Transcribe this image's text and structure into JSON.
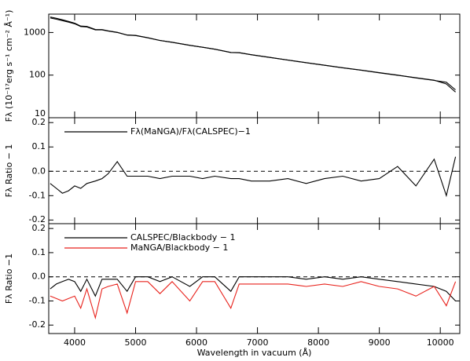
{
  "chart_data": [
    {
      "type": "line",
      "ylabel": "Fλ (10⁻¹⁷erg s⁻¹ cm⁻² Å⁻¹)",
      "log_y": true,
      "x": [
        3600,
        3700,
        3800,
        3900,
        4000,
        4100,
        4200,
        4340,
        4450,
        4550,
        4700,
        4861,
        5000,
        5200,
        5400,
        5600,
        5890,
        6100,
        6300,
        6563,
        6700,
        6900,
        7200,
        7500,
        7800,
        8100,
        8400,
        8700,
        9000,
        9300,
        9600,
        9900,
        10100,
        10250
      ],
      "series": [
        {
          "color": "#000000",
          "values": [
            2200,
            2050,
            1900,
            1750,
            1600,
            1380,
            1350,
            1150,
            1150,
            1080,
            1000,
            870,
            850,
            750,
            650,
            590,
            500,
            450,
            405,
            340,
            335,
            300,
            260,
            225,
            195,
            170,
            148,
            130,
            113,
            99,
            86,
            75,
            68,
            45
          ]
        },
        {
          "color": "#000000",
          "values": [
            2320,
            2160,
            1990,
            1820,
            1660,
            1420,
            1390,
            1180,
            1170,
            1095,
            1010,
            875,
            855,
            752,
            652,
            591,
            501,
            451,
            406,
            341,
            336,
            301,
            261,
            226,
            196,
            171,
            149,
            131,
            114,
            100,
            87,
            76,
            62,
            40
          ]
        }
      ],
      "xlim": [
        3575,
        10320
      ],
      "ylim": [
        10,
        2700
      ],
      "yticks": [
        10,
        100,
        1000
      ]
    },
    {
      "type": "line",
      "ylabel": "Fλ Ratio − 1",
      "reference_line": 0,
      "x": [
        3600,
        3700,
        3800,
        3900,
        4000,
        4100,
        4200,
        4340,
        4450,
        4550,
        4700,
        4861,
        5000,
        5200,
        5400,
        5600,
        5890,
        6100,
        6300,
        6563,
        6700,
        6900,
        7200,
        7500,
        7800,
        8100,
        8400,
        8700,
        9000,
        9300,
        9600,
        9900,
        10100,
        10250
      ],
      "series": [
        {
          "name": "Fλ(MaNGA)/Fλ(CALSPEC)−1",
          "color": "#000000",
          "values": [
            -0.05,
            -0.07,
            -0.09,
            -0.08,
            -0.06,
            -0.07,
            -0.05,
            -0.04,
            -0.03,
            -0.01,
            0.04,
            -0.02,
            -0.02,
            -0.02,
            -0.03,
            -0.02,
            -0.02,
            -0.03,
            -0.02,
            -0.03,
            -0.03,
            -0.04,
            -0.04,
            -0.03,
            -0.05,
            -0.03,
            -0.02,
            -0.04,
            -0.03,
            0.02,
            -0.06,
            0.05,
            -0.1,
            0.06
          ]
        }
      ],
      "xlim": [
        3575,
        10320
      ],
      "ylim": [
        -0.215,
        0.22
      ],
      "yticks": [
        -0.2,
        -0.1,
        {
          "value": 0,
          "label": "0.0"
        },
        0.1,
        0.2
      ]
    },
    {
      "type": "line",
      "ylabel": "Fλ Ratio −1",
      "xlabel": "Wavelength in vacuum (Å)",
      "reference_line": 0,
      "x": [
        3600,
        3700,
        3800,
        3900,
        4000,
        4100,
        4200,
        4340,
        4450,
        4550,
        4700,
        4861,
        5000,
        5200,
        5400,
        5600,
        5890,
        6100,
        6300,
        6563,
        6700,
        6900,
        7200,
        7500,
        7800,
        8100,
        8400,
        8700,
        9000,
        9300,
        9600,
        9900,
        10100,
        10250
      ],
      "series": [
        {
          "name": "CALSPEC/Blackbody − 1",
          "color": "#000000",
          "values": [
            -0.05,
            -0.03,
            -0.02,
            -0.01,
            -0.02,
            -0.06,
            -0.01,
            -0.08,
            -0.01,
            -0.01,
            -0.01,
            -0.06,
            0.0,
            0.0,
            -0.02,
            0.0,
            -0.04,
            0.0,
            0.0,
            -0.06,
            0.0,
            0.0,
            0.0,
            0.0,
            -0.01,
            0.0,
            -0.01,
            0.0,
            -0.01,
            -0.02,
            -0.03,
            -0.04,
            -0.06,
            -0.1
          ]
        },
        {
          "name": "MaNGA/Blackbody − 1",
          "color": "#e8221c",
          "values": [
            -0.08,
            -0.09,
            -0.1,
            -0.09,
            -0.08,
            -0.13,
            -0.05,
            -0.17,
            -0.05,
            -0.04,
            -0.03,
            -0.15,
            -0.02,
            -0.02,
            -0.07,
            -0.02,
            -0.1,
            -0.02,
            -0.02,
            -0.13,
            -0.03,
            -0.03,
            -0.03,
            -0.03,
            -0.04,
            -0.03,
            -0.04,
            -0.02,
            -0.04,
            -0.05,
            -0.08,
            -0.04,
            -0.12,
            -0.02
          ]
        }
      ],
      "xlim": [
        3575,
        10320
      ],
      "ylim": [
        -0.235,
        0.22
      ],
      "yticks": [
        -0.2,
        -0.1,
        {
          "value": 0,
          "label": "0.0"
        },
        0.1,
        0.2
      ],
      "xticks": [
        4000,
        5000,
        6000,
        7000,
        8000,
        9000,
        10000
      ]
    }
  ]
}
